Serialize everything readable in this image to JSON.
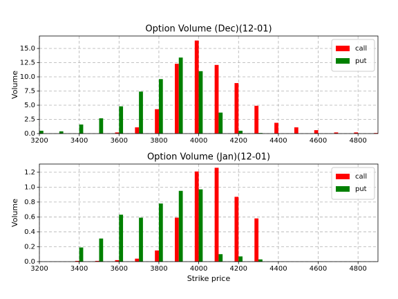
{
  "chart_data": [
    {
      "type": "bar",
      "title": "Option Volume (Dec)(12-01)",
      "ylabel": "Volume",
      "x": [
        3200,
        3300,
        3400,
        3500,
        3600,
        3700,
        3800,
        3900,
        4000,
        4100,
        4200,
        4300,
        4400,
        4500,
        4600,
        4700,
        4800,
        4900
      ],
      "series": [
        {
          "name": "call",
          "color": "#ff0000",
          "values": [
            0,
            0,
            0,
            0,
            0.2,
            1.1,
            4.3,
            12.3,
            16.4,
            12.1,
            8.9,
            4.9,
            1.9,
            1.1,
            0.6,
            0.2,
            0.2,
            0.1
          ]
        },
        {
          "name": "put",
          "color": "#008000",
          "values": [
            0.5,
            0.4,
            1.6,
            2.7,
            4.8,
            7.4,
            9.6,
            13.4,
            11.0,
            3.7,
            0.5,
            0.1,
            0,
            0,
            0,
            0,
            0,
            0
          ]
        }
      ],
      "xlim": [
        3200,
        4900
      ],
      "xticks": [
        3200,
        3400,
        3600,
        3800,
        4000,
        4200,
        4400,
        4600,
        4800
      ],
      "ylim": [
        0,
        17.2
      ],
      "yticks": [
        {
          "value": 0,
          "label": "0.0"
        },
        {
          "value": 2.5,
          "label": "2.5"
        },
        {
          "value": 5,
          "label": "5.0"
        },
        {
          "value": 7.5,
          "label": "7.5"
        },
        {
          "value": 10,
          "label": "10.0"
        },
        {
          "value": 12.5,
          "label": "12.5"
        },
        {
          "value": 15,
          "label": "15.0"
        }
      ],
      "grid": true,
      "legend": "upper right"
    },
    {
      "type": "bar",
      "title": "Option Volume (Jan)(12-01)",
      "ylabel": "Volume",
      "xlabel": "Strike price",
      "x": [
        3200,
        3300,
        3400,
        3500,
        3600,
        3700,
        3800,
        3900,
        4000,
        4100,
        4200,
        4300,
        4400,
        4500,
        4600,
        4700,
        4800,
        4900
      ],
      "series": [
        {
          "name": "call",
          "color": "#ff0000",
          "values": [
            0,
            0,
            0.01,
            0.01,
            0.02,
            0.04,
            0.15,
            0.59,
            1.21,
            1.26,
            0.87,
            0.58,
            0,
            0,
            0,
            0,
            0,
            0
          ]
        },
        {
          "name": "put",
          "color": "#008000",
          "values": [
            0,
            0,
            0.19,
            0.31,
            0.63,
            0.59,
            0.78,
            0.95,
            0.97,
            0.1,
            0.07,
            0.03,
            0,
            0,
            0,
            0,
            0,
            0
          ]
        }
      ],
      "xlim": [
        3200,
        4900
      ],
      "xticks": [
        3200,
        3400,
        3600,
        3800,
        4000,
        4200,
        4400,
        4600,
        4800
      ],
      "ylim": [
        0,
        1.31
      ],
      "yticks": [
        {
          "value": 0,
          "label": "0.0"
        },
        {
          "value": 0.2,
          "label": "0.2"
        },
        {
          "value": 0.4,
          "label": "0.4"
        },
        {
          "value": 0.6,
          "label": "0.6"
        },
        {
          "value": 0.8,
          "label": "0.8"
        },
        {
          "value": 1.0,
          "label": "1.0"
        },
        {
          "value": 1.2,
          "label": "1.2"
        }
      ],
      "grid": true,
      "legend": "upper right"
    }
  ]
}
